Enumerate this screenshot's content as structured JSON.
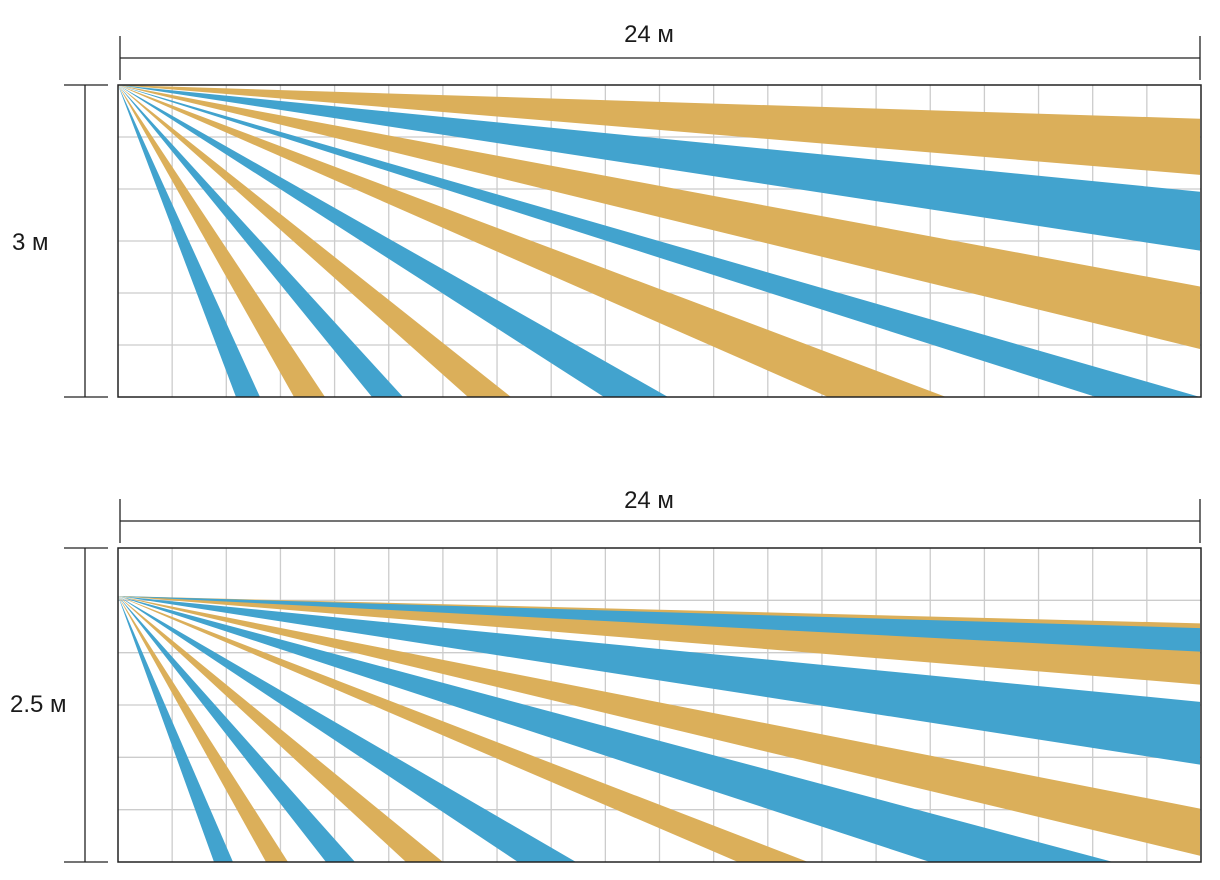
{
  "colors": {
    "orange": "#DBAF5A",
    "blue": "#42A3CE",
    "grid": "#CCCCCC",
    "frame": "#222222"
  },
  "diagrams": [
    {
      "name": "mount-3m",
      "width_label": "24 м",
      "height_label": "3 м",
      "grid_cols": 20,
      "grid_rows": 6,
      "beams": [
        {
          "color": "blue",
          "ends": [
            [
              118,
              1
            ],
            [
              142,
              1
            ]
          ]
        },
        {
          "color": "orange",
          "ends": [
            [
              176,
              1
            ],
            [
              207,
              1
            ]
          ]
        },
        {
          "color": "blue",
          "ends": [
            [
              254,
              1
            ],
            [
              285,
              1
            ]
          ]
        },
        {
          "color": "orange",
          "ends": [
            [
              350,
              1
            ],
            [
              393,
              1
            ]
          ]
        },
        {
          "color": "blue",
          "ends": [
            [
              486,
              1
            ],
            [
              550,
              1
            ]
          ]
        },
        {
          "color": "orange",
          "ends": [
            [
              710,
              1
            ],
            [
              828,
              1
            ]
          ]
        },
        {
          "color": "blue",
          "ends": [
            [
              978,
              1
            ],
            [
              1082,
              1
            ]
          ]
        },
        {
          "color": "orange",
          "ends": [
            [
              1082,
              0.646
            ],
            [
              1082,
              0.846
            ]
          ]
        },
        {
          "color": "blue",
          "ends": [
            [
              1082,
              0.342
            ],
            [
              1082,
              0.531
            ]
          ]
        },
        {
          "color": "orange",
          "ends": [
            [
              1082,
              0.108
            ],
            [
              1082,
              0.288
            ]
          ]
        }
      ]
    },
    {
      "name": "mount-2-5m",
      "width_label": "24 м",
      "height_label": "2.5 м",
      "grid_cols": 20,
      "grid_rows": 6,
      "beams": [
        {
          "color": "blue",
          "ends": [
            [
              96,
              1
            ],
            [
              115,
              1
            ]
          ]
        },
        {
          "color": "orange",
          "ends": [
            [
              148,
              1
            ],
            [
              170,
              1
            ]
          ]
        },
        {
          "color": "blue",
          "ends": [
            [
              208,
              1
            ],
            [
              237,
              1
            ]
          ]
        },
        {
          "color": "orange",
          "ends": [
            [
              288,
              1
            ],
            [
              325,
              1
            ]
          ]
        },
        {
          "color": "blue",
          "ends": [
            [
              400,
              1
            ],
            [
              458,
              1
            ]
          ]
        },
        {
          "color": "orange",
          "ends": [
            [
              620,
              1
            ],
            [
              690,
              1
            ]
          ]
        },
        {
          "color": "blue",
          "ends": [
            [
              812,
              1
            ],
            [
              995,
              1
            ]
          ]
        },
        {
          "color": "orange",
          "ends": [
            [
              1082,
              0.83
            ],
            [
              1082,
              0.98
            ]
          ]
        },
        {
          "color": "blue",
          "ends": [
            [
              1082,
              0.49
            ],
            [
              1082,
              0.69
            ]
          ]
        },
        {
          "color": "orange",
          "ends": [
            [
              1082,
              0.24
            ],
            [
              1082,
              0.435
            ]
          ]
        },
        {
          "color": "blue",
          "ends": [
            [
              1082,
              0.255
            ],
            [
              1082,
              0.33
            ]
          ]
        }
      ]
    }
  ]
}
